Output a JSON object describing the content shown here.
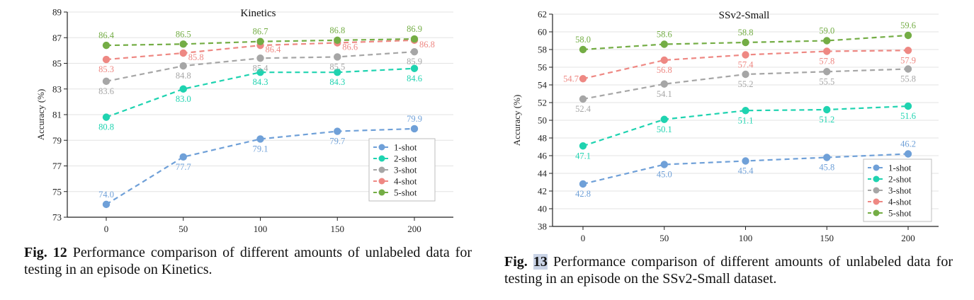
{
  "chart_data": [
    {
      "type": "line",
      "title": "Kinetics",
      "xlabel": "",
      "ylabel": "Accuracy (%)",
      "x": [
        0,
        50,
        100,
        150,
        200
      ],
      "ylim": [
        73,
        89
      ],
      "yticks": [
        73,
        75,
        77,
        79,
        81,
        83,
        85,
        87,
        89
      ],
      "grid": true,
      "legend": "bottom-right",
      "series": [
        {
          "name": "1-shot",
          "color": "#6fa0d8",
          "values": [
            74.0,
            77.7,
            79.1,
            79.7,
            79.9
          ],
          "labels": [
            "74.0",
            "77.7",
            "79.1",
            "79.7",
            "79.9"
          ],
          "label_pos": [
            "above",
            "below",
            "below",
            "below",
            "above"
          ]
        },
        {
          "name": "2-shot",
          "color": "#1fd3b0",
          "values": [
            80.8,
            83.0,
            84.3,
            84.3,
            84.6
          ],
          "labels": [
            "80.8",
            "83.0",
            "84.3",
            "84.3",
            "84.6"
          ],
          "label_pos": [
            "below",
            "below",
            "below",
            "below",
            "below"
          ]
        },
        {
          "name": "3-shot",
          "color": "#a6a6a6",
          "values": [
            83.6,
            84.8,
            85.4,
            85.5,
            85.9
          ],
          "labels": [
            "83.6",
            "84.8",
            "85.4",
            "85.5",
            "85.9"
          ],
          "label_pos": [
            "below",
            "below",
            "below",
            "below",
            "below"
          ]
        },
        {
          "name": "4-shot",
          "color": "#ee8883",
          "values": [
            85.3,
            85.8,
            86.4,
            86.6,
            86.8
          ],
          "labels": [
            "85.3",
            "85.8",
            "86.4",
            "86.6",
            "86.8"
          ],
          "label_pos": [
            "below",
            "right",
            "right",
            "right",
            "right"
          ]
        },
        {
          "name": "5-shot",
          "color": "#74ad45",
          "values": [
            86.4,
            86.5,
            86.7,
            86.8,
            86.9
          ],
          "labels": [
            "86.4",
            "86.5",
            "86.7",
            "86.8",
            "86.9"
          ],
          "label_pos": [
            "above",
            "above",
            "above",
            "above",
            "above"
          ]
        }
      ]
    },
    {
      "type": "line",
      "title": "SSv2-Small",
      "xlabel": "",
      "ylabel": "Accuracy (%)",
      "x": [
        0,
        50,
        100,
        150,
        200
      ],
      "ylim": [
        38,
        62
      ],
      "yticks": [
        38,
        40,
        42,
        44,
        46,
        48,
        50,
        52,
        54,
        56,
        58,
        60,
        62
      ],
      "grid": true,
      "legend": "bottom-right",
      "series": [
        {
          "name": "1-shot",
          "color": "#6fa0d8",
          "values": [
            42.8,
            45.0,
            45.4,
            45.8,
            46.2
          ],
          "labels": [
            "42.8",
            "45.0",
            "45.4",
            "45.8",
            "46.2"
          ],
          "label_pos": [
            "below",
            "below",
            "below",
            "below",
            "above"
          ]
        },
        {
          "name": "2-shot",
          "color": "#1fd3b0",
          "values": [
            47.1,
            50.1,
            51.1,
            51.2,
            51.6
          ],
          "labels": [
            "47.1",
            "50.1",
            "51.1",
            "51.2",
            "51.6"
          ],
          "label_pos": [
            "below",
            "below",
            "below",
            "below",
            "below"
          ]
        },
        {
          "name": "3-shot",
          "color": "#a6a6a6",
          "values": [
            52.4,
            54.1,
            55.2,
            55.5,
            55.8
          ],
          "labels": [
            "52.4",
            "54.1",
            "55.2",
            "55.5",
            "55.8"
          ],
          "label_pos": [
            "below",
            "below",
            "below",
            "below",
            "below"
          ]
        },
        {
          "name": "4-shot",
          "color": "#ee8883",
          "values": [
            54.7,
            56.8,
            57.4,
            57.8,
            57.9
          ],
          "labels": [
            "54.7",
            "56.8",
            "57.4",
            "57.8",
            "57.9"
          ],
          "label_pos": [
            "left",
            "below",
            "below",
            "below",
            "below"
          ]
        },
        {
          "name": "5-shot",
          "color": "#74ad45",
          "values": [
            58.0,
            58.6,
            58.8,
            59.0,
            59.6
          ],
          "labels": [
            "58.0",
            "58.6",
            "58.8",
            "59.0",
            "59.6"
          ],
          "label_pos": [
            "above",
            "above",
            "above",
            "above",
            "above"
          ]
        }
      ]
    }
  ],
  "captions": {
    "left": {
      "label": "Fig. 12",
      "text": " Performance comparison of different amounts of unlabeled data for testing in an episode on Kinetics."
    },
    "right": {
      "label": "Fig.",
      "num": "13",
      "text": " Performance comparison of different amounts of unlabeled data for testing in an episode on the SSv2-Small dataset."
    }
  }
}
